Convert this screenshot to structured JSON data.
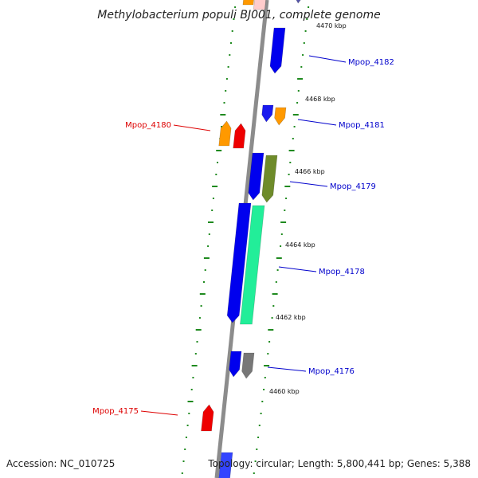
{
  "title": "Methylobacterium populi BJ001, complete genome",
  "footer": {
    "accession": "Accession: NC_010725",
    "summary": "Topology: circular; Length: 5,800,441 bp; Genes: 5,388"
  },
  "colors": {
    "backbone": "#8c8c8c",
    "tick": "#1f8a1f",
    "label_forward": "#0000cc",
    "label_reverse": "#dd0000"
  },
  "kbp_markers": [
    {
      "text": "4470 kbp"
    },
    {
      "text": "4468 kbp"
    },
    {
      "text": "4466 kbp"
    },
    {
      "text": "4464 kbp"
    },
    {
      "text": "4462 kbp"
    },
    {
      "text": "4460 kbp"
    }
  ],
  "gene_labels": [
    {
      "text": "Mpop_4182",
      "strand": "forward"
    },
    {
      "text": "Mpop_4181",
      "strand": "forward"
    },
    {
      "text": "Mpop_4180",
      "strand": "reverse"
    },
    {
      "text": "Mpop_4179",
      "strand": "forward"
    },
    {
      "text": "Mpop_4178",
      "strand": "forward"
    },
    {
      "text": "Mpop_4176",
      "strand": "forward"
    },
    {
      "text": "Mpop_4175",
      "strand": "reverse"
    }
  ],
  "features": [
    {
      "color": "#ff9900"
    },
    {
      "color": "#ffcccc"
    },
    {
      "color": "#5555aa"
    },
    {
      "color": "#0000ee"
    },
    {
      "color": "#1a1aee"
    },
    {
      "color": "#ff9900"
    },
    {
      "color": "#ff9900"
    },
    {
      "color": "#ee0000"
    },
    {
      "color": "#0000ee"
    },
    {
      "color": "#6e8b2a"
    },
    {
      "color": "#0000ee"
    },
    {
      "color": "#22ee99"
    },
    {
      "color": "#0000ee"
    },
    {
      "color": "#777777"
    },
    {
      "color": "#ee0000"
    },
    {
      "color": "#3344ff"
    }
  ]
}
